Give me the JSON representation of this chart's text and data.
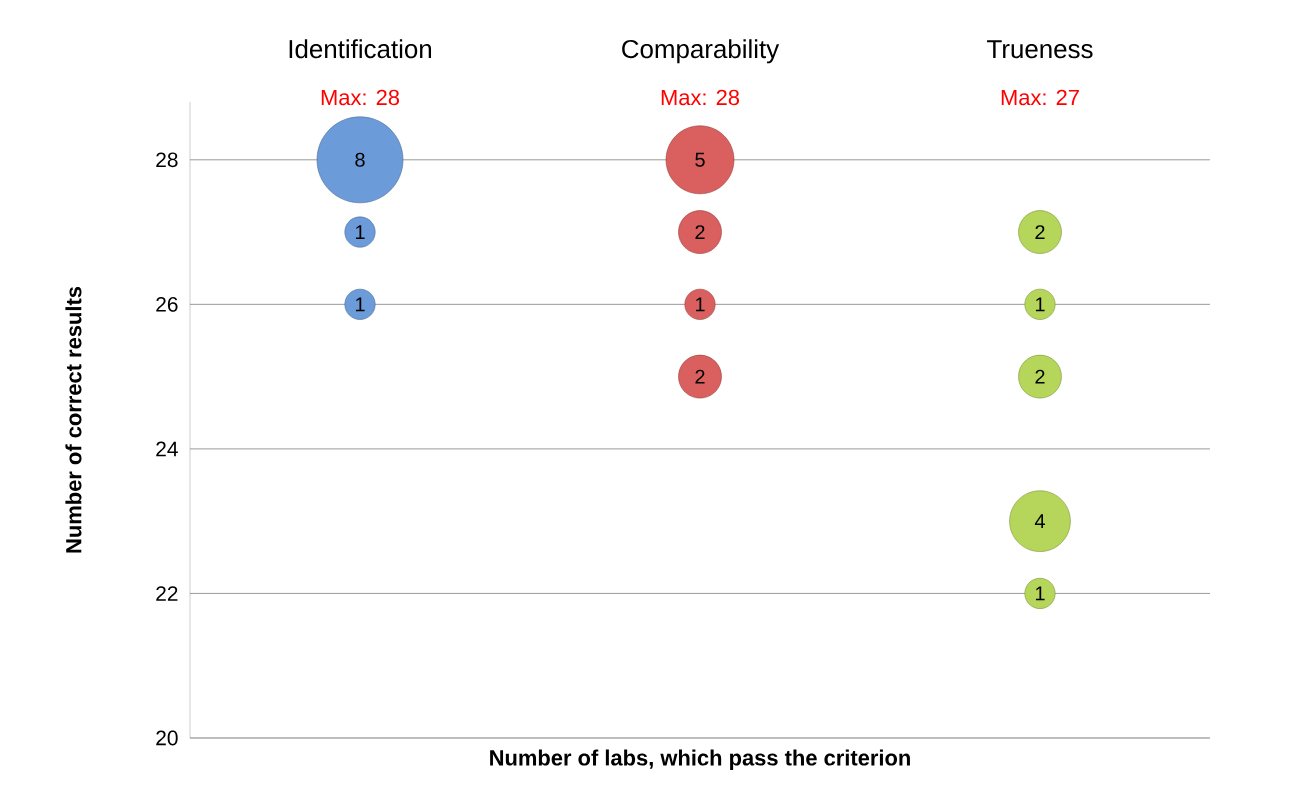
{
  "chart_data": {
    "type": "bubble",
    "categories": [
      "Identification",
      "Comparability",
      "Trueness"
    ],
    "annotations": [
      "Max: 28",
      "Max: 28",
      "Max: 27"
    ],
    "xlabel": "Number of labs, which pass the criterion",
    "ylabel": "Number of correct results",
    "ylim": [
      20,
      28.8
    ],
    "yticks": [
      20,
      22,
      24,
      26,
      28
    ],
    "grid": "y",
    "series": [
      {
        "color": "#6b9bd8",
        "x": [
          "Identification",
          "Identification",
          "Identification"
        ],
        "values": [
          28,
          27,
          26
        ],
        "sizes": [
          8,
          1,
          1
        ],
        "value_labels": [
          "8",
          "1",
          "1"
        ]
      },
      {
        "color": "#d9605e",
        "x": [
          "Comparability",
          "Comparability",
          "Comparability",
          "Comparability"
        ],
        "values": [
          28,
          27,
          26,
          25
        ],
        "sizes": [
          5,
          2,
          1,
          2
        ],
        "value_labels": [
          "5",
          "2",
          "1",
          "2"
        ]
      },
      {
        "color": "#b5d65a",
        "x": [
          "Trueness",
          "Trueness",
          "Trueness",
          "Trueness",
          "Trueness"
        ],
        "values": [
          27,
          26,
          25,
          23,
          22
        ],
        "sizes": [
          2,
          1,
          2,
          4,
          1
        ],
        "value_labels": [
          "2",
          "1",
          "2",
          "4",
          "1"
        ]
      }
    ]
  }
}
